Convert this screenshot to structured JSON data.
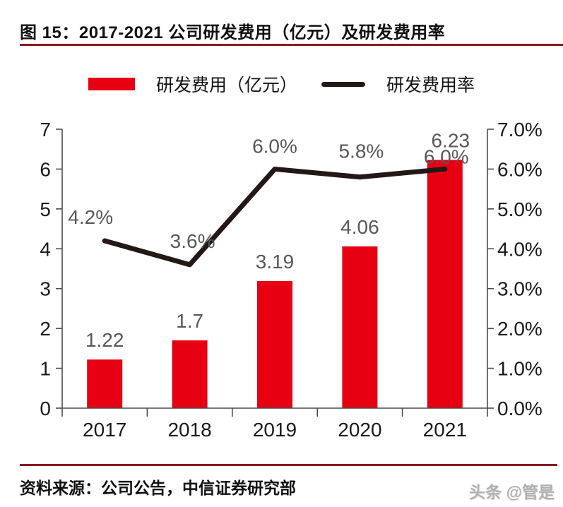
{
  "header": {
    "title": "图 15：2017-2021 公司研发费用（亿元）及研发费用率"
  },
  "legend": {
    "bar_label": "研发费用（亿元）",
    "line_label": "研发费用率"
  },
  "footer": {
    "source": "资料来源：公司公告，中信证券研究部",
    "watermark": "头条 @管是"
  },
  "colors": {
    "bar": "#e60012",
    "line": "#231815",
    "data_label": "#595757",
    "axis": "#4d4d4d",
    "axis_text": "#1a1a1a",
    "rule": "#871d22"
  },
  "chart_data": {
    "type": "bar",
    "subtype": "bar+line-dual-axis",
    "title": "2017-2021 公司研发费用（亿元）及研发费用率",
    "categories": [
      "2017",
      "2018",
      "2019",
      "2020",
      "2021"
    ],
    "series": [
      {
        "name": "研发费用（亿元）",
        "type": "bar",
        "axis": "left",
        "values": [
          1.22,
          1.7,
          3.19,
          4.06,
          6.23
        ],
        "labels": [
          "1.22",
          "1.7",
          "3.19",
          "4.06",
          "6.23"
        ],
        "color": "#e60012"
      },
      {
        "name": "研发费用率",
        "type": "line",
        "axis": "right",
        "values": [
          4.2,
          3.6,
          6.0,
          5.8,
          6.0
        ],
        "labels": [
          "4.2%",
          "3.6%",
          "6.0%",
          "5.8%",
          "6.0%"
        ],
        "color": "#231815"
      }
    ],
    "left_axis": {
      "min": 0,
      "max": 7,
      "ticks": [
        "0",
        "1",
        "2",
        "3",
        "4",
        "5",
        "6",
        "7"
      ]
    },
    "right_axis": {
      "min": 0,
      "max": 7,
      "ticks": [
        "0.0%",
        "1.0%",
        "2.0%",
        "3.0%",
        "4.0%",
        "5.0%",
        "6.0%",
        "7.0%"
      ]
    },
    "grid": false,
    "legend_position": "top",
    "annotations": {
      "bar_label_dx": [
        0,
        0,
        0,
        0,
        8
      ],
      "bar_label_dy": -18,
      "line_label_dx": [
        -20,
        4,
        0,
        2,
        2
      ],
      "line_label_dy": [
        -24,
        -24,
        -23,
        -27,
        -8
      ]
    }
  }
}
